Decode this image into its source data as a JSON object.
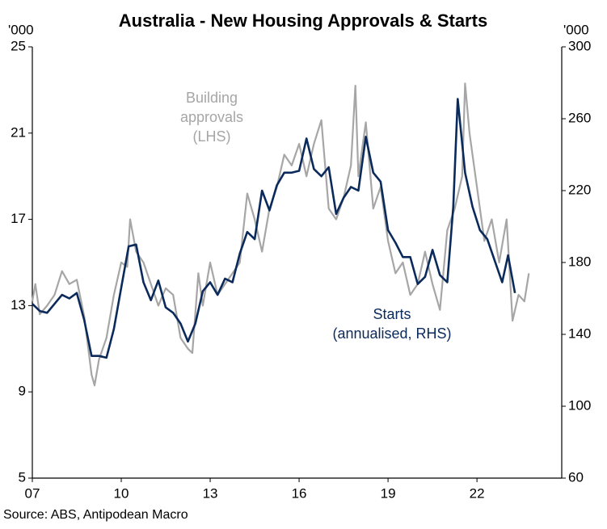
{
  "chart_data": {
    "type": "line",
    "title": "Australia - New Housing Approvals & Starts",
    "y_unit": "'000",
    "y2_unit": "'000",
    "source": "Source: ABS, Antipodean Macro",
    "xlim": [
      2007,
      2024.86
    ],
    "xticks": [
      {
        "value": 2007,
        "label": "07"
      },
      {
        "value": 2010,
        "label": "10"
      },
      {
        "value": 2013,
        "label": "13"
      },
      {
        "value": 2016,
        "label": "16"
      },
      {
        "value": 2019,
        "label": "19"
      },
      {
        "value": 2022,
        "label": "22"
      }
    ],
    "ylim": [
      5,
      25
    ],
    "yticks": [
      5,
      9,
      13,
      17,
      21,
      25
    ],
    "y2lim": [
      60,
      300
    ],
    "y2ticks": [
      60,
      100,
      140,
      180,
      220,
      260,
      300
    ],
    "annotations": [
      {
        "lines": [
          "Building",
          "approvals",
          "(LHS)"
        ],
        "color": "#a6a6a6"
      },
      {
        "lines": [
          "Starts",
          "(annualised, RHS)"
        ],
        "color": "#0b2a5c"
      }
    ],
    "series": [
      {
        "color": "#a6a6a6",
        "axis": "y",
        "x": [
          2007.0,
          2007.1,
          2007.25,
          2007.5,
          2007.75,
          2008.0,
          2008.25,
          2008.5,
          2008.75,
          2009.0,
          2009.1,
          2009.25,
          2009.5,
          2009.75,
          2010.0,
          2010.2,
          2010.3,
          2010.5,
          2010.75,
          2011.0,
          2011.25,
          2011.5,
          2011.75,
          2012.0,
          2012.25,
          2012.4,
          2012.6,
          2012.75,
          2013.0,
          2013.25,
          2013.5,
          2013.75,
          2014.0,
          2014.25,
          2014.5,
          2014.75,
          2015.0,
          2015.25,
          2015.5,
          2015.75,
          2016.0,
          2016.25,
          2016.5,
          2016.75,
          2017.0,
          2017.25,
          2017.5,
          2017.75,
          2017.9,
          2018.0,
          2018.25,
          2018.5,
          2018.75,
          2019.0,
          2019.25,
          2019.5,
          2019.75,
          2020.0,
          2020.25,
          2020.5,
          2020.75,
          2021.0,
          2021.25,
          2021.5,
          2021.6,
          2021.75,
          2022.0,
          2022.25,
          2022.5,
          2022.75,
          2023.0,
          2023.2,
          2023.4,
          2023.6,
          2023.75
        ],
        "values": [
          13.2,
          14.0,
          12.6,
          13.0,
          13.5,
          14.6,
          14.0,
          14.2,
          12.5,
          9.8,
          9.3,
          10.5,
          11.5,
          13.5,
          15.0,
          14.8,
          17.0,
          15.5,
          15.0,
          14.0,
          13.0,
          13.8,
          13.5,
          11.5,
          11.0,
          10.8,
          14.5,
          13.0,
          15.0,
          13.5,
          14.0,
          14.5,
          15.0,
          18.2,
          17.0,
          15.5,
          17.5,
          18.5,
          20.0,
          19.5,
          20.5,
          19.0,
          20.5,
          21.6,
          17.5,
          17.0,
          18.0,
          19.5,
          23.2,
          19.0,
          21.5,
          17.5,
          18.5,
          16.0,
          14.5,
          15.0,
          13.5,
          14.0,
          15.5,
          14.0,
          12.8,
          16.5,
          17.5,
          19.0,
          23.3,
          21.0,
          18.5,
          16.0,
          17.0,
          15.0,
          17.0,
          12.3,
          13.5,
          13.2,
          14.5
        ]
      },
      {
        "color": "#0b2a5c",
        "axis": "y2",
        "x": [
          2007.0,
          2007.25,
          2007.5,
          2007.75,
          2008.0,
          2008.25,
          2008.5,
          2008.75,
          2009.0,
          2009.25,
          2009.5,
          2009.75,
          2010.0,
          2010.25,
          2010.5,
          2010.75,
          2011.0,
          2011.25,
          2011.5,
          2011.75,
          2012.0,
          2012.25,
          2012.5,
          2012.75,
          2013.0,
          2013.25,
          2013.5,
          2013.75,
          2014.0,
          2014.25,
          2014.5,
          2014.75,
          2015.0,
          2015.25,
          2015.5,
          2015.75,
          2016.0,
          2016.25,
          2016.5,
          2016.75,
          2017.0,
          2017.25,
          2017.5,
          2017.75,
          2018.0,
          2018.25,
          2018.5,
          2018.75,
          2019.0,
          2019.25,
          2019.5,
          2019.75,
          2020.0,
          2020.25,
          2020.5,
          2020.75,
          2021.0,
          2021.2,
          2021.35,
          2021.6,
          2021.85,
          2022.1,
          2022.35,
          2022.6,
          2022.85,
          2023.05,
          2023.28
        ],
        "values": [
          157,
          153,
          152,
          157,
          162,
          160,
          163,
          148,
          128,
          128,
          127,
          143,
          166,
          189,
          190,
          169,
          159,
          170,
          155,
          152,
          146,
          136,
          146,
          164,
          169,
          162,
          171,
          169,
          185,
          197,
          193,
          220,
          209,
          223,
          230,
          230,
          231,
          249,
          232,
          228,
          233,
          207,
          216,
          222,
          220,
          250,
          230,
          225,
          198,
          191,
          183,
          183,
          168,
          172,
          187,
          173,
          169,
          211,
          271,
          230,
          211,
          198,
          193,
          181,
          169,
          184,
          163
        ]
      }
    ]
  }
}
